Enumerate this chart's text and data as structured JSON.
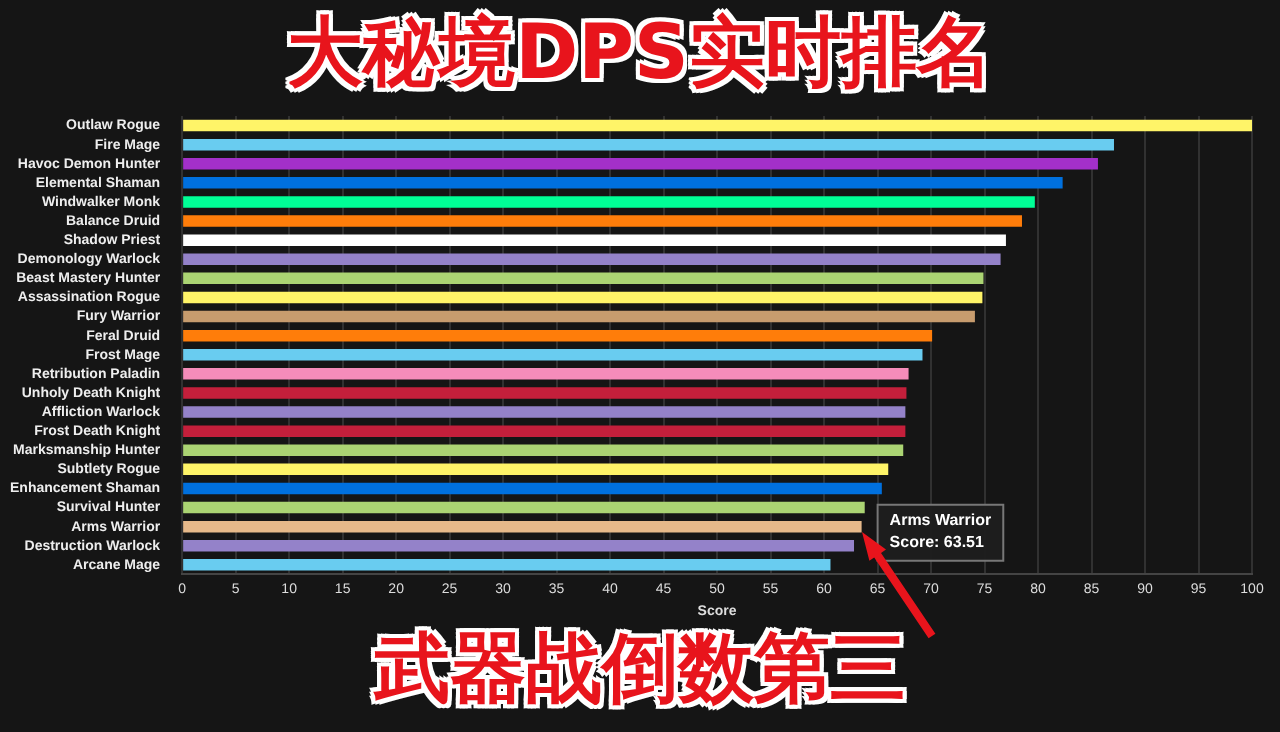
{
  "chart_data": {
    "type": "bar",
    "orientation": "horizontal",
    "title": "大秘境DPS实时排名",
    "subtitle": "武器战倒数第三",
    "xlabel": "Score",
    "categories": [
      "Outlaw Rogue",
      "Fire Mage",
      "Havoc Demon Hunter",
      "Elemental Shaman",
      "Windwalker Monk",
      "Balance Druid",
      "Shadow Priest",
      "Demonology Warlock",
      "Beast Mastery Hunter",
      "Assassination Rogue",
      "Fury Warrior",
      "Feral Druid",
      "Frost Mage",
      "Retribution Paladin",
      "Unholy Death Knight",
      "Affliction Warlock",
      "Frost Death Knight",
      "Marksmanship Hunter",
      "Subtlety Rogue",
      "Enhancement Shaman",
      "Survival Hunter",
      "Arms Warrior",
      "Destruction Warlock",
      "Arcane Mage"
    ],
    "values": [
      100,
      87.1,
      85.6,
      82.3,
      79.7,
      78.5,
      77.0,
      76.5,
      74.9,
      74.8,
      74.1,
      70.1,
      69.2,
      67.9,
      67.7,
      67.6,
      67.6,
      67.4,
      66.0,
      65.4,
      63.8,
      63.51,
      62.8,
      60.6
    ],
    "colors": [
      "#fff468",
      "#69ccf0",
      "#a330c9",
      "#0070de",
      "#00ff96",
      "#ff7d0a",
      "#ffffff",
      "#9482c9",
      "#abd473",
      "#fff468",
      "#c79c6e",
      "#ff7d0a",
      "#69ccf0",
      "#f58cba",
      "#c41f3b",
      "#9482c9",
      "#c41f3b",
      "#abd473",
      "#fff468",
      "#0070de",
      "#abd473",
      "#e6b98a",
      "#9482c9",
      "#69ccf0"
    ],
    "xlim": [
      0,
      100
    ],
    "xticks": [
      0,
      5,
      10,
      15,
      20,
      25,
      30,
      35,
      40,
      45,
      50,
      55,
      60,
      65,
      70,
      75,
      80,
      85,
      90,
      95,
      100
    ],
    "grid": "x",
    "legend": false,
    "annotations": [
      {
        "text": "Arms Warrior\nScore: 63.51",
        "x": 63.51,
        "y": "Arms Warrior"
      }
    ]
  }
}
